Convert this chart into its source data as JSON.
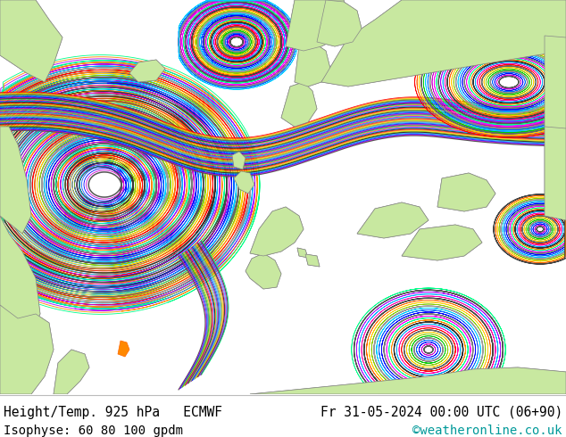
{
  "title_left": "Height/Temp. 925 hPa   ECMWF",
  "title_right": "Fr 31-05-2024 00:00 UTC (06+90)",
  "subtitle_left": "Isophyse: 60 80 100 gpdm",
  "subtitle_right": "©weatheronline.co.uk",
  "subtitle_right_color": "#009999",
  "bg_color": "#ffffff",
  "ocean_color": "#f0f0f0",
  "land_color": "#c8e8a0",
  "land_color2": "#aad080",
  "coast_color": "#888888",
  "text_color": "#000000",
  "font_size_title": 10.5,
  "font_size_subtitle": 10,
  "contour_colors": [
    "#888888",
    "#666666",
    "#444444",
    "#222222",
    "#555555"
  ],
  "multi_colors": [
    "#ff00ff",
    "#cc00cc",
    "#0000ff",
    "#0066ff",
    "#00ccff",
    "#00cc00",
    "#88cc00",
    "#ffcc00",
    "#ff6600",
    "#ff0000",
    "#ff00aa",
    "#00aaff",
    "#aa00ff",
    "#ff8800",
    "#00ff88"
  ]
}
